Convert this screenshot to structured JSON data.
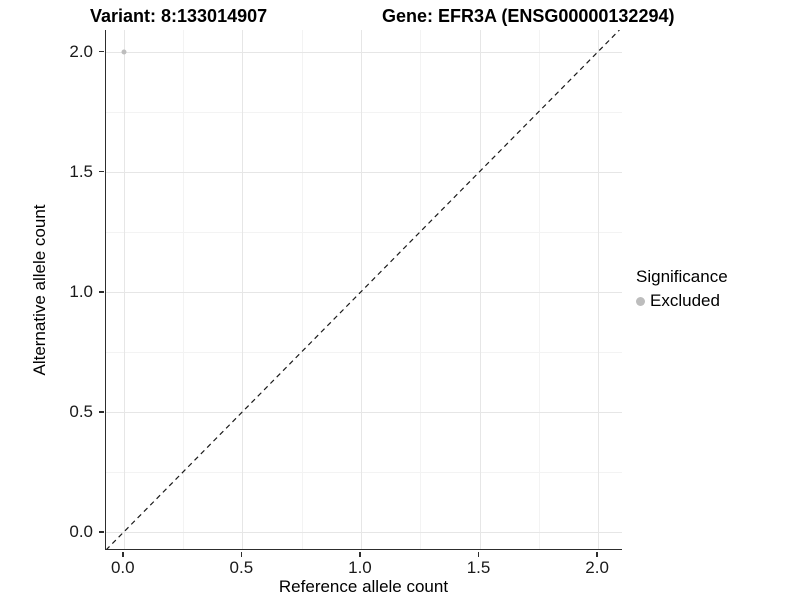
{
  "chart_data": {
    "type": "scatter",
    "titles": {
      "left": "Variant: 8:133014907",
      "right": "Gene: EFR3A (ENSG00000132294)"
    },
    "xlabel": "Reference allele count",
    "ylabel": "Alternative allele count",
    "xlim": [
      -0.075,
      2.105
    ],
    "ylim": [
      -0.075,
      2.09
    ],
    "x_ticks": [
      {
        "value": 0.0,
        "label": "0.0"
      },
      {
        "value": 0.5,
        "label": "0.5"
      },
      {
        "value": 1.0,
        "label": "1.0"
      },
      {
        "value": 1.5,
        "label": "1.5"
      },
      {
        "value": 2.0,
        "label": "2.0"
      }
    ],
    "y_ticks": [
      {
        "value": 0.0,
        "label": "0.0"
      },
      {
        "value": 0.5,
        "label": "0.5"
      },
      {
        "value": 1.0,
        "label": "1.0"
      },
      {
        "value": 1.5,
        "label": "1.5"
      },
      {
        "value": 2.0,
        "label": "2.0"
      }
    ],
    "grid": {
      "major": true,
      "minor": true,
      "major_color": "#e6e6e6",
      "minor_color": "#f3f3f3"
    },
    "reference_line": {
      "equation": "y = x",
      "style": "dashed",
      "color": "#1a1a1a"
    },
    "series": [
      {
        "name": "Excluded",
        "color": "#bdbdbd",
        "points": [
          {
            "x": 0.0,
            "y": 2.0
          }
        ]
      }
    ],
    "legend": {
      "title": "Significance",
      "position": "right",
      "entries": [
        {
          "label": "Excluded",
          "color": "#bdbdbd",
          "marker": "circle"
        }
      ]
    }
  }
}
